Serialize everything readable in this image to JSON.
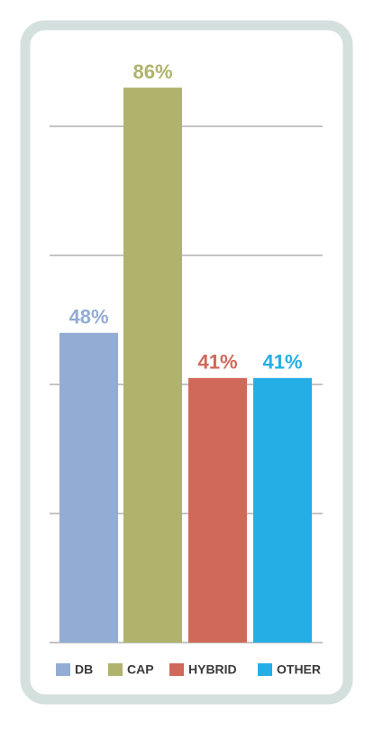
{
  "chart_data": {
    "type": "bar",
    "categories": [
      "DB",
      "CAP",
      "HYBRID",
      "OTHER"
    ],
    "values": [
      48,
      86,
      41,
      41
    ],
    "value_labels": [
      "48%",
      "86%",
      "41%",
      "41%"
    ],
    "colors": [
      "#93acd4",
      "#b0b36c",
      "#d0695a",
      "#25aee6"
    ],
    "ylim": [
      0,
      90
    ],
    "yticks": [
      0,
      20,
      40,
      60,
      80
    ],
    "grid": true
  }
}
